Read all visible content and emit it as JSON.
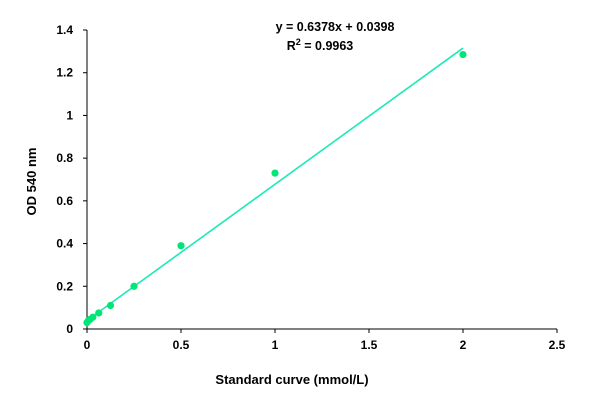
{
  "chart_data": {
    "type": "scatter",
    "title": "",
    "xlabel": "Standard curve (mmol/L)",
    "ylabel": "OD 540 nm",
    "xlim": [
      0,
      2.5
    ],
    "ylim": [
      0,
      1.4
    ],
    "x_ticks": [
      "0",
      "0.5",
      "1",
      "1.5",
      "2",
      "2.5"
    ],
    "y_ticks": [
      "0",
      "0.2",
      "0.4",
      "0.6",
      "0.8",
      "1",
      "1.2",
      "1.4"
    ],
    "grid": false,
    "legend": "none",
    "point_color": "#00e676",
    "line_color": "#1de9b6",
    "series": [
      {
        "x": [
          0.0,
          0.008,
          0.016,
          0.031,
          0.0625,
          0.125,
          0.25,
          0.5,
          1.0,
          2.0
        ],
        "y": [
          0.03,
          0.04,
          0.045,
          0.055,
          0.075,
          0.11,
          0.2,
          0.39,
          0.73,
          1.285
        ]
      }
    ],
    "trendline": {
      "slope": 0.6378,
      "intercept": 0.0398,
      "equation": "y = 0.6378x + 0.0398",
      "r2_label": "R",
      "r2_sup": "2",
      "r2_value": " = 0.9963"
    }
  }
}
